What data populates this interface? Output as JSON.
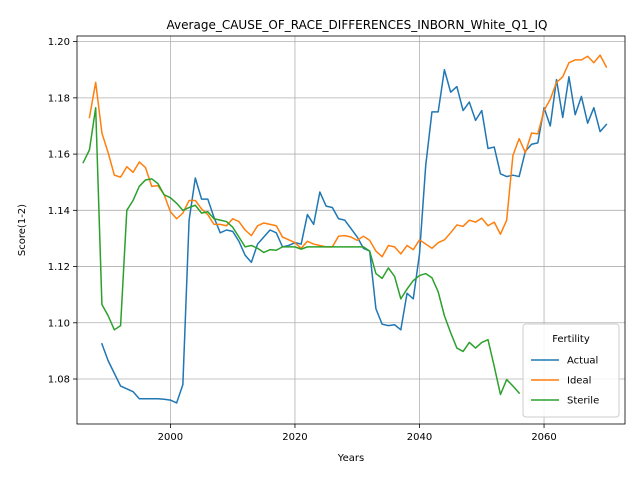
{
  "chart_data": {
    "type": "line",
    "title": "Average_CAUSE_OF_RACE_DIFFERENCES_INBORN_White_Q1_IQ",
    "xlabel": "Years",
    "ylabel": "Score(1-2)",
    "xlim": [
      1985,
      2073
    ],
    "ylim": [
      1.064,
      1.202
    ],
    "xticks": [
      2000,
      2020,
      2040,
      2060
    ],
    "yticks": [
      1.08,
      1.1,
      1.12,
      1.14,
      1.16,
      1.18,
      1.2
    ],
    "ytick_labels": [
      "1.08",
      "1.10",
      "1.12",
      "1.14",
      "1.16",
      "1.18",
      "1.20"
    ],
    "grid": true,
    "legend": {
      "title": "Fertility",
      "position": "lower-right"
    },
    "series": [
      {
        "name": "Actual",
        "color": "#1f77b4",
        "x": [
          1989,
          1990,
          1991,
          1992,
          1993,
          1994,
          1995,
          1996,
          1997,
          1998,
          1999,
          2000,
          2001,
          2002,
          2003,
          2004,
          2005,
          2006,
          2007,
          2008,
          2009,
          2010,
          2011,
          2012,
          2013,
          2014,
          2015,
          2016,
          2017,
          2018,
          2019,
          2020,
          2021,
          2022,
          2023,
          2024,
          2025,
          2026,
          2027,
          2028,
          2029,
          2030,
          2031,
          2032,
          2033,
          2034,
          2035,
          2036,
          2037,
          2038,
          2039,
          2040,
          2041,
          2042,
          2043,
          2044,
          2045,
          2046,
          2047,
          2048,
          2049,
          2050,
          2051,
          2052,
          2053,
          2054,
          2055,
          2056,
          2057,
          2058,
          2059,
          2060,
          2061,
          2062,
          2063,
          2064,
          2065,
          2066,
          2067,
          2068,
          2069,
          2070
        ],
        "values": [
          1.0925,
          1.0865,
          1.082,
          1.0775,
          1.0765,
          1.0755,
          1.073,
          1.073,
          1.073,
          1.073,
          1.0728,
          1.0725,
          1.0715,
          1.078,
          1.1365,
          1.1515,
          1.144,
          1.144,
          1.1375,
          1.132,
          1.133,
          1.1325,
          1.129,
          1.124,
          1.1215,
          1.128,
          1.1305,
          1.133,
          1.132,
          1.127,
          1.1275,
          1.1285,
          1.128,
          1.1385,
          1.135,
          1.1465,
          1.1415,
          1.141,
          1.137,
          1.1365,
          1.1335,
          1.1305,
          1.1265,
          1.1255,
          1.105,
          1.0995,
          1.099,
          1.0993,
          1.0975,
          1.1105,
          1.1085,
          1.1245,
          1.156,
          1.175,
          1.175,
          1.19,
          1.182,
          1.184,
          1.1755,
          1.1785,
          1.172,
          1.1755,
          1.162,
          1.1625,
          1.153,
          1.152,
          1.1525,
          1.152,
          1.161,
          1.1635,
          1.164,
          1.1765,
          1.17,
          1.1865,
          1.173,
          1.1875,
          1.174,
          1.1805,
          1.171,
          1.1765,
          1.168,
          1.1705
        ]
      },
      {
        "name": "Ideal",
        "color": "#ff7f0e",
        "x": [
          1987,
          1988,
          1989,
          1990,
          1991,
          1992,
          1993,
          1994,
          1995,
          1996,
          1997,
          1998,
          1999,
          2000,
          2001,
          2002,
          2003,
          2004,
          2005,
          2006,
          2007,
          2008,
          2009,
          2010,
          2011,
          2012,
          2013,
          2014,
          2015,
          2016,
          2017,
          2018,
          2019,
          2020,
          2021,
          2022,
          2023,
          2024,
          2025,
          2026,
          2027,
          2028,
          2029,
          2030,
          2031,
          2032,
          2033,
          2034,
          2035,
          2036,
          2037,
          2038,
          2039,
          2040,
          2041,
          2042,
          2043,
          2044,
          2045,
          2046,
          2047,
          2048,
          2049,
          2050,
          2051,
          2052,
          2053,
          2054,
          2055,
          2056,
          2057,
          2058,
          2059,
          2060,
          2061,
          2062,
          2063,
          2064,
          2065,
          2066,
          2067,
          2068,
          2069,
          2070
        ],
        "values": [
          1.173,
          1.1855,
          1.1675,
          1.1605,
          1.1525,
          1.1518,
          1.1555,
          1.1535,
          1.1572,
          1.1552,
          1.1485,
          1.1488,
          1.1455,
          1.1395,
          1.137,
          1.139,
          1.1435,
          1.1435,
          1.1405,
          1.1385,
          1.135,
          1.135,
          1.1345,
          1.137,
          1.136,
          1.133,
          1.131,
          1.1345,
          1.1355,
          1.135,
          1.1345,
          1.1305,
          1.1295,
          1.1285,
          1.1265,
          1.129,
          1.128,
          1.1275,
          1.127,
          1.127,
          1.1308,
          1.131,
          1.1305,
          1.1293,
          1.1308,
          1.1293,
          1.1255,
          1.1235,
          1.1275,
          1.127,
          1.1245,
          1.1275,
          1.126,
          1.1295,
          1.128,
          1.1265,
          1.1285,
          1.1295,
          1.132,
          1.1348,
          1.1343,
          1.1365,
          1.1358,
          1.1372,
          1.1345,
          1.1358,
          1.1315,
          1.1365,
          1.1595,
          1.1655,
          1.1605,
          1.1675,
          1.1672,
          1.1755,
          1.1795,
          1.1855,
          1.1875,
          1.1925,
          1.1935,
          1.1935,
          1.1948,
          1.1925,
          1.1952,
          1.191
        ]
      },
      {
        "name": "Sterile",
        "color": "#2ca02c",
        "x": [
          1986,
          1987,
          1988,
          1989,
          1990,
          1991,
          1992,
          1993,
          1994,
          1995,
          1996,
          1997,
          1998,
          1999,
          2000,
          2001,
          2002,
          2003,
          2004,
          2005,
          2006,
          2007,
          2008,
          2009,
          2010,
          2011,
          2012,
          2013,
          2014,
          2015,
          2016,
          2017,
          2018,
          2019,
          2020,
          2021,
          2022,
          2023,
          2024,
          2025,
          2026,
          2027,
          2028,
          2029,
          2030,
          2031,
          2032,
          2033,
          2034,
          2035,
          2036,
          2037,
          2038,
          2039,
          2040,
          2041,
          2042,
          2043,
          2044,
          2045,
          2046,
          2047,
          2048,
          2049,
          2050,
          2051,
          2052,
          2053,
          2054,
          2055,
          2056
        ],
        "values": [
          1.157,
          1.1615,
          1.1765,
          1.1065,
          1.1025,
          1.0975,
          1.099,
          1.14,
          1.1435,
          1.1485,
          1.1508,
          1.1512,
          1.1495,
          1.1455,
          1.1445,
          1.1425,
          1.14,
          1.141,
          1.1418,
          1.139,
          1.1395,
          1.137,
          1.1365,
          1.136,
          1.134,
          1.1305,
          1.127,
          1.1275,
          1.1265,
          1.125,
          1.126,
          1.1258,
          1.127,
          1.127,
          1.127,
          1.1262,
          1.127,
          1.127,
          1.127,
          1.127,
          1.127,
          1.127,
          1.127,
          1.127,
          1.127,
          1.127,
          1.1255,
          1.1175,
          1.1158,
          1.1195,
          1.1165,
          1.1085,
          1.112,
          1.115,
          1.1168,
          1.1175,
          1.116,
          1.111,
          1.1025,
          1.0965,
          1.091,
          1.0898,
          1.093,
          1.091,
          1.093,
          1.094,
          1.0845,
          1.0745,
          1.0798,
          1.0775,
          1.075
        ]
      }
    ]
  }
}
